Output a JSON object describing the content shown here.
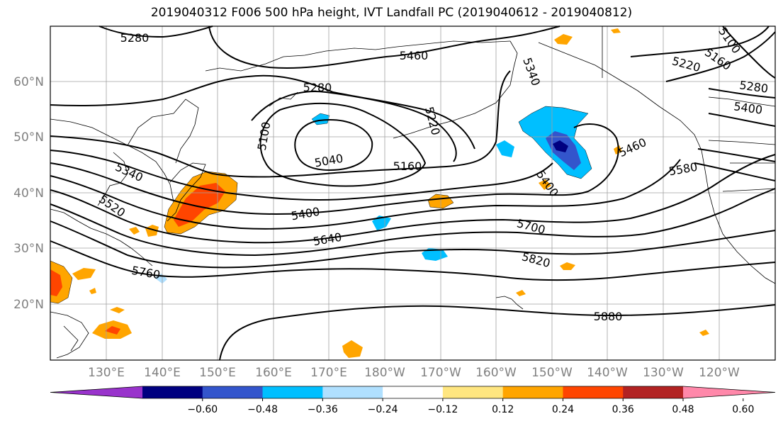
{
  "title": "2019040312 F006 500 hPa height, IVT Landfall PC (2019040612 - 2019040812)",
  "map": {
    "lon_labels": [
      "130°E",
      "140°E",
      "150°E",
      "160°E",
      "170°E",
      "180°W",
      "170°W",
      "160°W",
      "150°W",
      "140°W",
      "130°W",
      "120°W"
    ],
    "lat_labels": [
      "60°N",
      "50°N",
      "40°N",
      "30°N",
      "20°N"
    ],
    "contour_labels": [
      "5280",
      "5460",
      "5280",
      "5220",
      "5100",
      "5040",
      "5160",
      "5340",
      "5520",
      "5400",
      "5640",
      "5760",
      "5700",
      "5820",
      "5880",
      "5460",
      "5580",
      "5400",
      "5280",
      "5220",
      "5160",
      "5100",
      "5340",
      "5400"
    ]
  },
  "colorbar": {
    "ticks": [
      "−0.60",
      "−0.48",
      "−0.36",
      "−0.24",
      "−0.12",
      "0.12",
      "0.24",
      "0.36",
      "0.48",
      "0.60"
    ],
    "colors": [
      "#9933cc",
      "#000080",
      "#3355cc",
      "#00bfff",
      "#b0e0ff",
      "#ffffff",
      "#ffe680",
      "#ffa500",
      "#ff4500",
      "#b22222",
      "#ff88aa"
    ]
  },
  "colors": {
    "contour": "#000000",
    "grid": "#a0a0a0",
    "coast": "#000000"
  }
}
